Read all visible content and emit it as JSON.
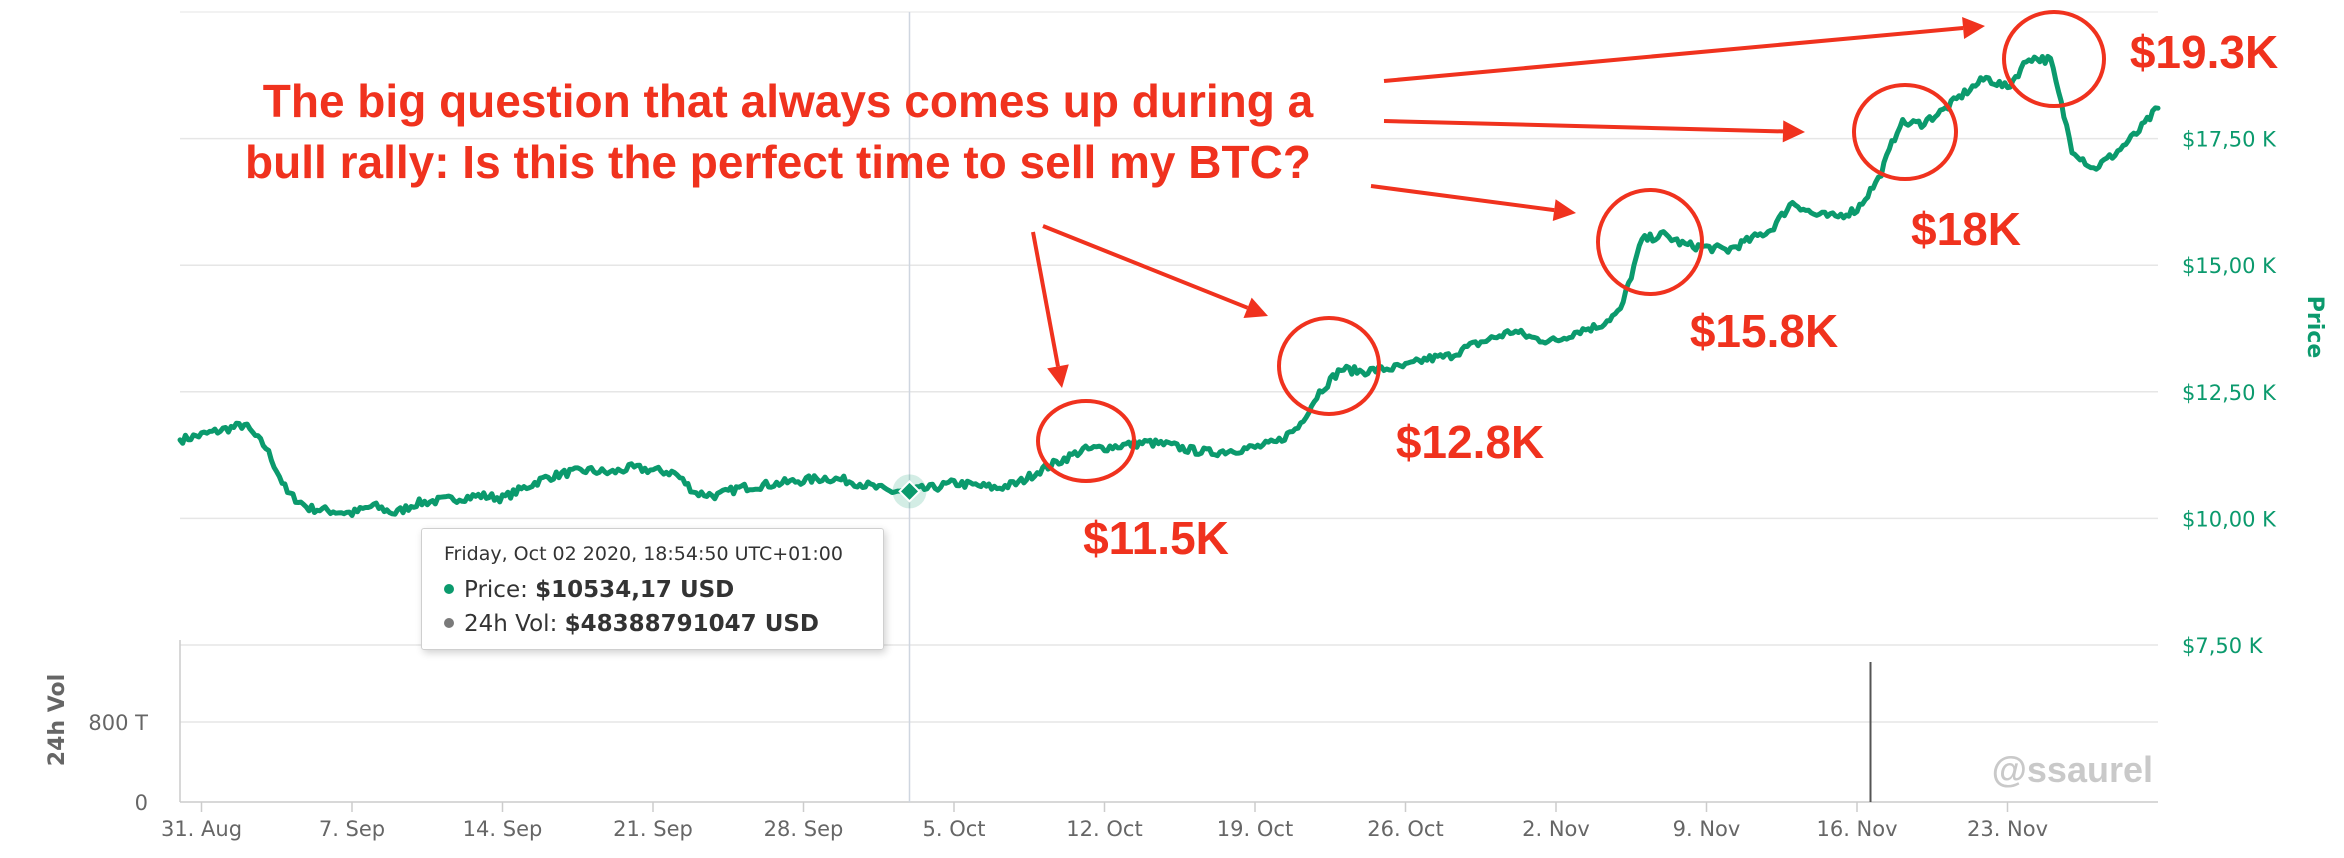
{
  "chart_data": {
    "type": "line",
    "y_axis": {
      "title": "Price",
      "tick_labels": [
        "$7,50 K",
        "$10,00 K",
        "$12,50 K",
        "$15,00 K",
        "$17,50 K"
      ],
      "tick_values": [
        7500,
        10000,
        12500,
        15000,
        17500
      ],
      "range": [
        7500,
        20000
      ],
      "position": "right",
      "color": "#0b9a6d"
    },
    "volume_axis": {
      "title": "24h Vol",
      "tick_labels": [
        "0",
        "800 T"
      ],
      "tick_values": [
        0,
        800
      ]
    },
    "x_axis": {
      "tick_labels": [
        "31. Aug",
        "7. Sep",
        "14. Sep",
        "21. Sep",
        "28. Sep",
        "5. Oct",
        "12. Oct",
        "19. Oct",
        "26. Oct",
        "2. Nov",
        "9. Nov",
        "16. Nov",
        "23. Nov"
      ],
      "range": [
        "2020-08-30",
        "2020-11-30"
      ]
    },
    "grid": true,
    "series": [
      {
        "name": "Price",
        "color": "#0b9a6d",
        "points": [
          [
            "2020-08-30",
            11550
          ],
          [
            "2020-08-31",
            11650
          ],
          [
            "2020-09-01",
            11750
          ],
          [
            "2020-09-02",
            11850
          ],
          [
            "2020-09-03",
            11400
          ],
          [
            "2020-09-04",
            10500
          ],
          [
            "2020-09-05",
            10200
          ],
          [
            "2020-09-06",
            10150
          ],
          [
            "2020-09-07",
            10100
          ],
          [
            "2020-09-08",
            10250
          ],
          [
            "2020-09-09",
            10100
          ],
          [
            "2020-09-10",
            10300
          ],
          [
            "2020-09-11",
            10350
          ],
          [
            "2020-09-12",
            10400
          ],
          [
            "2020-09-13",
            10450
          ],
          [
            "2020-09-14",
            10400
          ],
          [
            "2020-09-15",
            10600
          ],
          [
            "2020-09-16",
            10800
          ],
          [
            "2020-09-17",
            10900
          ],
          [
            "2020-09-18",
            10950
          ],
          [
            "2020-09-19",
            10900
          ],
          [
            "2020-09-20",
            11000
          ],
          [
            "2020-09-21",
            10950
          ],
          [
            "2020-09-22",
            10900
          ],
          [
            "2020-09-23",
            10500
          ],
          [
            "2020-09-24",
            10450
          ],
          [
            "2020-09-25",
            10600
          ],
          [
            "2020-09-26",
            10650
          ],
          [
            "2020-09-27",
            10700
          ],
          [
            "2020-09-28",
            10750
          ],
          [
            "2020-09-29",
            10800
          ],
          [
            "2020-09-30",
            10750
          ],
          [
            "2020-10-01",
            10650
          ],
          [
            "2020-10-02",
            10534
          ],
          [
            "2020-10-03",
            10550
          ],
          [
            "2020-10-04",
            10600
          ],
          [
            "2020-10-05",
            10700
          ],
          [
            "2020-10-06",
            10650
          ],
          [
            "2020-10-07",
            10600
          ],
          [
            "2020-10-08",
            10700
          ],
          [
            "2020-10-09",
            10950
          ],
          [
            "2020-10-10",
            11150
          ],
          [
            "2020-10-11",
            11350
          ],
          [
            "2020-10-12",
            11400
          ],
          [
            "2020-10-13",
            11450
          ],
          [
            "2020-10-14",
            11500
          ],
          [
            "2020-10-15",
            11450
          ],
          [
            "2020-10-16",
            11350
          ],
          [
            "2020-10-17",
            11300
          ],
          [
            "2020-10-18",
            11350
          ],
          [
            "2020-10-19",
            11400
          ],
          [
            "2020-10-20",
            11500
          ],
          [
            "2020-10-21",
            11800
          ],
          [
            "2020-10-22",
            12500
          ],
          [
            "2020-10-23",
            12950
          ],
          [
            "2020-10-24",
            12900
          ],
          [
            "2020-10-25",
            12950
          ],
          [
            "2020-10-26",
            13000
          ],
          [
            "2020-10-27",
            13150
          ],
          [
            "2020-10-28",
            13200
          ],
          [
            "2020-10-29",
            13400
          ],
          [
            "2020-10-30",
            13550
          ],
          [
            "2020-10-31",
            13700
          ],
          [
            "2020-11-01",
            13550
          ],
          [
            "2020-11-02",
            13500
          ],
          [
            "2020-11-03",
            13700
          ],
          [
            "2020-11-04",
            13800
          ],
          [
            "2020-11-05",
            14100
          ],
          [
            "2020-11-06",
            15500
          ],
          [
            "2020-11-07",
            15600
          ],
          [
            "2020-11-08",
            15400
          ],
          [
            "2020-11-09",
            15350
          ],
          [
            "2020-11-10",
            15300
          ],
          [
            "2020-11-11",
            15500
          ],
          [
            "2020-11-12",
            15700
          ],
          [
            "2020-11-13",
            16250
          ],
          [
            "2020-11-14",
            16000
          ],
          [
            "2020-11-15",
            15950
          ],
          [
            "2020-11-16",
            16100
          ],
          [
            "2020-11-17",
            16700
          ],
          [
            "2020-11-18",
            17800
          ],
          [
            "2020-11-19",
            17800
          ],
          [
            "2020-11-20",
            18050
          ],
          [
            "2020-11-21",
            18400
          ],
          [
            "2020-11-22",
            18700
          ],
          [
            "2020-11-23",
            18500
          ],
          [
            "2020-11-24",
            19100
          ],
          [
            "2020-11-25",
            19050
          ],
          [
            "2020-11-26",
            17300
          ],
          [
            "2020-11-27",
            16900
          ],
          [
            "2020-11-28",
            17200
          ],
          [
            "2020-11-29",
            17600
          ],
          [
            "2020-11-30",
            18100
          ]
        ]
      },
      {
        "name": "24h Vol",
        "color": "#555555"
      }
    ],
    "tooltip": {
      "date": "Friday, Oct 02 2020, 18:54:50 UTC+01:00",
      "price_label": "Price:",
      "price_value": "$10534,17 USD",
      "vol_label": "24h Vol:",
      "vol_value": "$48388791047 USD",
      "price_dot_color": "#0b9a6d",
      "vol_dot_color": "#7a7a7a"
    },
    "annotations": {
      "headline_line1": "The big question that always comes up during a",
      "headline_line2": "bull rally: Is this the perfect time to sell my BTC?",
      "levels": [
        "$11.5K",
        "$12.8K",
        "$15.8K",
        "$18K",
        "$19.3K"
      ],
      "color": "#f0321e"
    },
    "watermark": "@ssaurel"
  }
}
